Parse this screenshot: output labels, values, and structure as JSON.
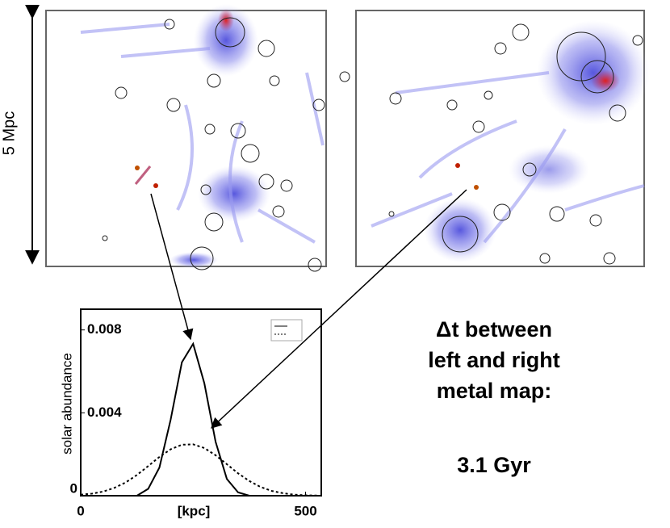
{
  "chart_data": {
    "type": "line",
    "ylabel": "solar abundance",
    "xlabel": "[kpc]",
    "x": [
      0,
      25,
      50,
      75,
      100,
      125,
      150,
      175,
      200,
      225,
      250,
      275,
      300,
      325,
      350,
      375,
      400,
      425,
      450,
      475,
      500,
      525
    ],
    "series": [
      {
        "color": "#000000",
        "dash": false,
        "values": [
          0,
          0,
          0,
          0,
          0,
          0,
          0.00033,
          0.00136,
          0.00367,
          0.00644,
          0.00733,
          0.00542,
          0.0026,
          0.00081,
          0.00016,
          0,
          0,
          0,
          0,
          0,
          0,
          0
        ]
      },
      {
        "color": "#000000",
        "dash": true,
        "values": [
          5e-05,
          0.0001,
          0.0002,
          0.00038,
          0.00064,
          0.001,
          0.00143,
          0.00187,
          0.00224,
          0.00246,
          0.00248,
          0.0023,
          0.00195,
          0.00152,
          0.00108,
          0.00071,
          0.00042,
          0.00023,
          0.00012,
          5e-05,
          2e-05,
          1e-05
        ]
      }
    ],
    "xlim": [
      0,
      535
    ],
    "ylim": [
      0,
      0.009
    ],
    "xticks": [
      0,
      500
    ],
    "yticks": [
      0,
      0.004,
      0.008
    ],
    "scale_label": "5 Mpc",
    "annotations": [
      "Δt between",
      "left and right",
      "metal map:",
      "3.1 Gyr"
    ]
  }
}
